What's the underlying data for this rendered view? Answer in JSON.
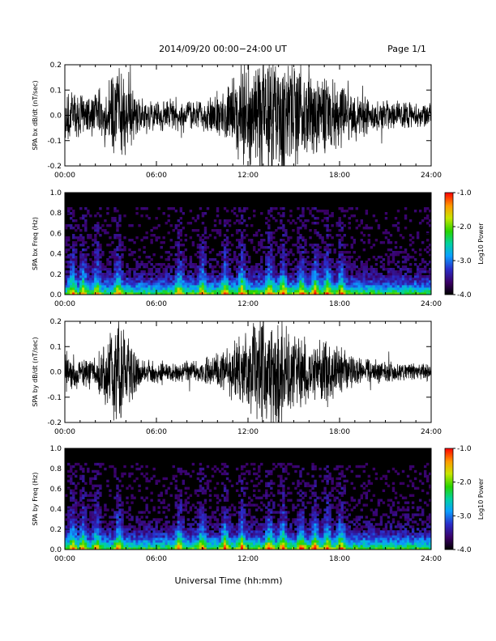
{
  "header": {
    "title": "2014/09/20  00:00−24:00 UT",
    "page": "Page 1/1"
  },
  "x_axis_label": "Universal Time (hh:mm)",
  "colors": {
    "background": "#ffffff",
    "trace": "#000000",
    "spectrogram_bg": "#000000"
  },
  "chart_data": [
    {
      "type": "line",
      "ylabel": "SPA bx dB/dt (nT/sec)",
      "xlim": [
        "00:00",
        "24:00"
      ],
      "ylim": [
        -0.2,
        0.2
      ],
      "xticks": [
        "00:00",
        "06:00",
        "12:00",
        "18:00",
        "24:00"
      ],
      "yticks": [
        "-0.2",
        "-0.1",
        "0.0",
        "0.1",
        "0.2"
      ],
      "amplitude_envelope": {
        "hours": [
          0,
          1,
          2,
          3,
          3.5,
          4,
          5,
          6,
          7,
          8,
          9,
          10,
          11,
          12,
          13,
          14,
          15,
          16,
          17,
          18,
          19,
          20,
          21,
          22,
          23,
          24
        ],
        "amplitude": [
          0.09,
          0.07,
          0.07,
          0.12,
          0.18,
          0.12,
          0.06,
          0.05,
          0.05,
          0.05,
          0.05,
          0.08,
          0.12,
          0.16,
          0.2,
          0.2,
          0.18,
          0.12,
          0.13,
          0.1,
          0.08,
          0.06,
          0.05,
          0.05,
          0.04,
          0.04
        ]
      }
    },
    {
      "type": "heatmap",
      "ylabel": "SPA bx Freq (Hz)",
      "xlim": [
        "00:00",
        "24:00"
      ],
      "ylim": [
        0.0,
        1.0
      ],
      "xticks": [
        "00:00",
        "06:00",
        "12:00",
        "18:00",
        "24:00"
      ],
      "yticks": [
        "0.0",
        "0.2",
        "0.4",
        "0.6",
        "0.8",
        "1.0"
      ],
      "colorbar": {
        "label": "Log10 Power",
        "range": [
          -4.0,
          -1.0
        ],
        "ticks": [
          "-1.0",
          "-2.0",
          "-3.0",
          "-4.0"
        ]
      },
      "active_bursts_hours": [
        0.5,
        1.2,
        2.1,
        3.5,
        7.5,
        9.0,
        10.5,
        11.6,
        13.4,
        14.3,
        15.5,
        16.4,
        17.2,
        18.1
      ]
    },
    {
      "type": "line",
      "ylabel": "SPA by dB/dt (nT/sec)",
      "xlim": [
        "00:00",
        "24:00"
      ],
      "ylim": [
        -0.2,
        0.2
      ],
      "xticks": [
        "00:00",
        "06:00",
        "12:00",
        "18:00",
        "24:00"
      ],
      "yticks": [
        "-0.2",
        "-0.1",
        "0.0",
        "0.1",
        "0.2"
      ],
      "amplitude_envelope": {
        "hours": [
          0,
          1,
          2,
          3,
          3.5,
          4,
          5,
          6,
          7,
          8,
          9,
          10,
          11,
          12,
          13,
          14,
          15,
          16,
          17,
          18,
          19,
          20,
          21,
          22,
          23,
          24
        ],
        "amplitude": [
          0.06,
          0.05,
          0.05,
          0.14,
          0.2,
          0.12,
          0.04,
          0.04,
          0.03,
          0.03,
          0.04,
          0.06,
          0.09,
          0.13,
          0.19,
          0.2,
          0.14,
          0.09,
          0.1,
          0.08,
          0.05,
          0.04,
          0.04,
          0.03,
          0.03,
          0.03
        ]
      }
    },
    {
      "type": "heatmap",
      "ylabel": "SPA by Freq (Hz)",
      "xlim": [
        "00:00",
        "24:00"
      ],
      "ylim": [
        0.0,
        1.0
      ],
      "xticks": [
        "00:00",
        "06:00",
        "12:00",
        "18:00",
        "24:00"
      ],
      "yticks": [
        "0.0",
        "0.2",
        "0.4",
        "0.6",
        "0.8",
        "1.0"
      ],
      "colorbar": {
        "label": "Log10 Power",
        "range": [
          -4.0,
          -1.0
        ],
        "ticks": [
          "-1.0",
          "-2.0",
          "-3.0",
          "-4.0"
        ]
      },
      "active_bursts_hours": [
        0.5,
        1.2,
        2.1,
        3.5,
        7.5,
        9.0,
        10.5,
        11.6,
        13.4,
        14.3,
        15.5,
        16.4,
        17.2,
        18.1
      ]
    }
  ]
}
